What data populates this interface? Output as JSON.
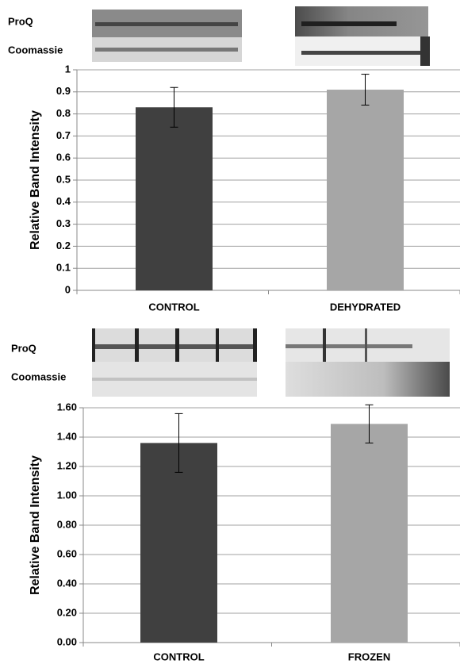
{
  "chart_data": [
    {
      "type": "bar",
      "blot_labels": [
        "ProQ",
        "Coomassie"
      ],
      "y_label": "Relative Band Intensity",
      "categories": [
        "CONTROL",
        "DEHYDRATED"
      ],
      "values": [
        0.83,
        0.91
      ],
      "errors": [
        0.09,
        0.07
      ],
      "colors": [
        "#404040",
        "#a6a6a6"
      ],
      "ylim": [
        0,
        1
      ],
      "yticks": [
        0,
        0.1,
        0.2,
        0.3,
        0.4,
        0.5,
        0.6,
        0.7,
        0.8,
        0.9,
        1
      ],
      "grid": true
    },
    {
      "type": "bar",
      "blot_labels": [
        "ProQ",
        "Coomassie"
      ],
      "y_label": "Relative Band Intensity",
      "categories": [
        "CONTROL",
        "FROZEN"
      ],
      "values": [
        1.36,
        1.49
      ],
      "errors": [
        0.2,
        0.13
      ],
      "colors": [
        "#404040",
        "#a6a6a6"
      ],
      "ylim": [
        0,
        1.6
      ],
      "yticks": [
        {
          "value": 0,
          "label": "0.00"
        },
        {
          "value": 0.2,
          "label": "0.20"
        },
        {
          "value": 0.4,
          "label": "0.40"
        },
        {
          "value": 0.6,
          "label": "0.60"
        },
        {
          "value": 0.8,
          "label": "0.80"
        },
        {
          "value": 1.0,
          "label": "1.00"
        },
        {
          "value": 1.2,
          "label": "1.20"
        },
        {
          "value": 1.4,
          "label": "1.40"
        },
        {
          "value": 1.6,
          "label": "1.60"
        }
      ],
      "grid": true
    }
  ]
}
